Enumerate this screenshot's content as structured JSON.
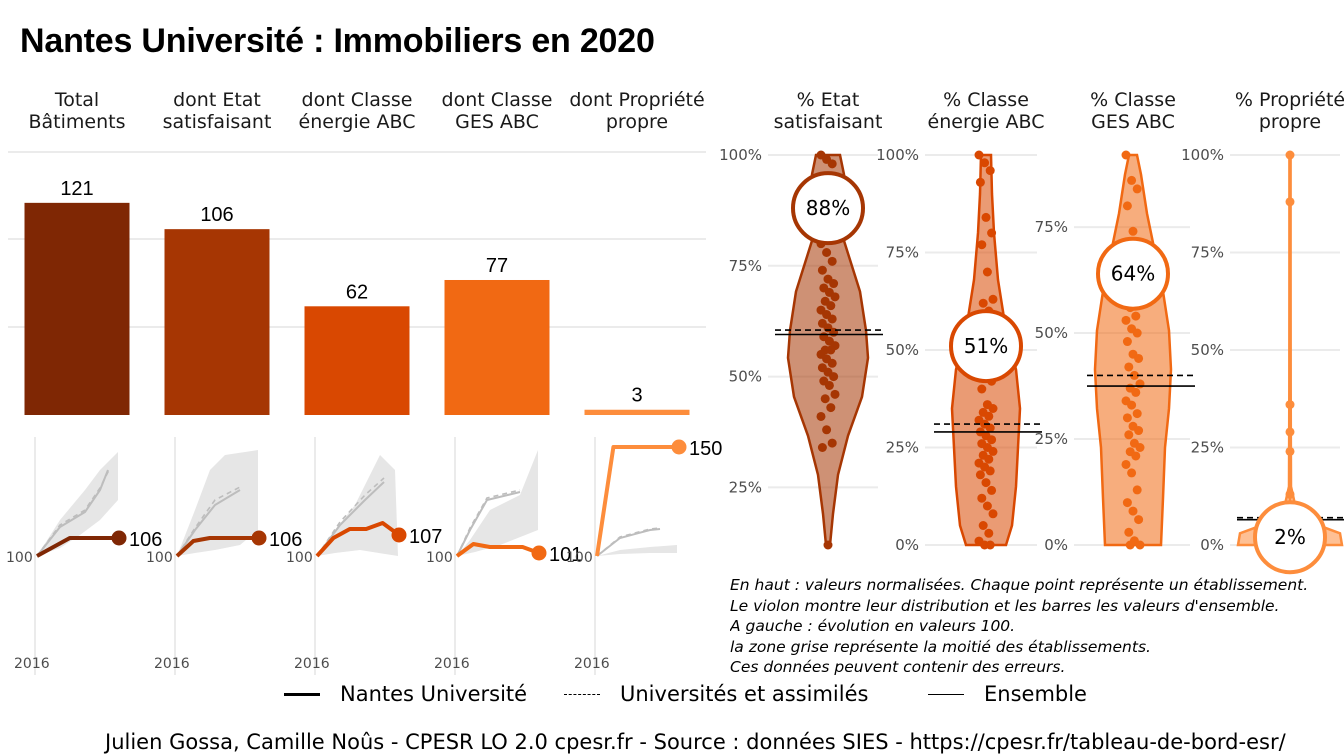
{
  "title": "Nantes Université  :  Immobiliers en 2020",
  "colors": {
    "bat": "#7F2704",
    "etat": "#A63603",
    "energie": "#D94801",
    "ges": "#F16913",
    "propre": "#FD8D3C",
    "grid": "#ebebeb",
    "ribbon": "#e6e6e6"
  },
  "chart_data": [
    {
      "type": "bar",
      "title": "",
      "categories": [
        "Total\nBâtiments",
        "dont Etat\nsatisfaisant",
        "dont Classe\nénergie ABC",
        "dont Classe\nGES ABC",
        "dont Propriété\npropre"
      ],
      "values": [
        121,
        106,
        62,
        77,
        3
      ],
      "data_labels": [
        "121",
        "106",
        "62",
        "77",
        "3"
      ],
      "ylim": [
        0,
        150
      ]
    },
    {
      "type": "line",
      "title": "",
      "x_tick": "2016",
      "base_label": "100",
      "series": [
        {
          "name": "Nantes Université",
          "values": [
            100,
            103,
            106,
            106,
            106,
            106
          ],
          "end_label": "106"
        },
        {
          "name": "Nantes Université",
          "values": [
            100,
            105,
            106,
            106,
            106,
            106
          ],
          "end_label": "106"
        },
        {
          "name": "Nantes Université",
          "values": [
            100,
            106,
            109,
            109,
            111,
            107
          ],
          "end_label": "107"
        },
        {
          "name": "Nantes Université",
          "values": [
            100,
            104,
            103,
            103,
            103,
            101
          ],
          "end_label": "101"
        },
        {
          "name": "Nantes Université",
          "values": [
            100,
            150,
            150,
            150,
            150,
            150
          ],
          "end_label": "150"
        }
      ]
    },
    {
      "type": "scatter",
      "title": "",
      "categories": [
        "% Etat\nsatisfaisant",
        "% Classe\nénergie ABC",
        "% Classe\nGES ABC",
        "% Propriété\npropre"
      ],
      "y_ticks": [
        [
          "25%",
          "50%",
          "75%",
          "100%"
        ],
        [
          "0%",
          "25%",
          "50%",
          "75%",
          "100%"
        ],
        [
          "0%",
          "25%",
          "50%",
          "75%"
        ],
        [
          "0%",
          "25%",
          "50%",
          "75%",
          "100%"
        ]
      ],
      "ylim": [
        [
          0.12,
          1.0
        ],
        [
          0,
          1.0
        ],
        [
          0,
          0.92
        ],
        [
          0,
          1.0
        ]
      ],
      "highlight_values": [
        0.88,
        0.51,
        0.64,
        0.02
      ],
      "highlight_labels": [
        "88%",
        "51%",
        "64%",
        "2%"
      ],
      "universites_values": [
        0.605,
        0.31,
        0.4,
        0.07
      ],
      "ensemble_values": [
        0.595,
        0.29,
        0.375,
        0.065
      ],
      "points": [
        [
          1.0,
          0.99,
          0.98,
          0.95,
          0.94,
          0.93,
          0.91,
          0.89,
          0.87,
          0.84,
          0.82,
          0.8,
          0.78,
          0.76,
          0.74,
          0.72,
          0.71,
          0.7,
          0.69,
          0.68,
          0.67,
          0.66,
          0.65,
          0.64,
          0.63,
          0.62,
          0.61,
          0.6,
          0.59,
          0.58,
          0.57,
          0.56,
          0.56,
          0.55,
          0.54,
          0.53,
          0.52,
          0.51,
          0.5,
          0.49,
          0.48,
          0.46,
          0.45,
          0.43,
          0.41,
          0.38,
          0.35,
          0.34,
          0.12
        ],
        [
          1.0,
          0.98,
          0.96,
          0.93,
          0.84,
          0.8,
          0.77,
          0.7,
          0.63,
          0.62,
          0.6,
          0.58,
          0.55,
          0.52,
          0.48,
          0.45,
          0.42,
          0.4,
          0.36,
          0.35,
          0.34,
          0.33,
          0.32,
          0.31,
          0.3,
          0.29,
          0.28,
          0.27,
          0.26,
          0.25,
          0.24,
          0.23,
          0.22,
          0.21,
          0.2,
          0.19,
          0.18,
          0.16,
          0.14,
          0.12,
          0.1,
          0.08,
          0.05,
          0.03,
          0.01,
          0.0,
          0.0
        ],
        [
          0.92,
          0.86,
          0.84,
          0.8,
          0.74,
          0.69,
          0.66,
          0.62,
          0.58,
          0.56,
          0.54,
          0.53,
          0.51,
          0.5,
          0.48,
          0.45,
          0.44,
          0.42,
          0.4,
          0.38,
          0.37,
          0.36,
          0.34,
          0.33,
          0.31,
          0.3,
          0.28,
          0.27,
          0.26,
          0.24,
          0.23,
          0.22,
          0.21,
          0.19,
          0.17,
          0.13,
          0.1,
          0.08,
          0.06,
          0.03,
          0.01,
          0.0,
          0.0
        ],
        [
          1.0,
          0.88,
          0.36,
          0.29,
          0.24,
          0.13,
          0.09,
          0.06,
          0.05,
          0.04,
          0.03,
          0.02,
          0.02,
          0.01,
          0.01,
          0.0,
          0.0,
          0.0,
          0.0,
          0.0,
          0.0
        ]
      ]
    }
  ],
  "notes": [
    "En haut : valeurs normalisées. Chaque point représente un établissement.",
    "Le violon montre leur distribution et les barres les valeurs d'ensemble.",
    "A gauche : évolution en valeurs 100.",
    "la zone grise représente la moitié des établissements.",
    "Ces données peuvent contenir des erreurs."
  ],
  "legend": [
    {
      "label": "Nantes Université",
      "style": "solid-thick"
    },
    {
      "label": "Universités et assimilés",
      "style": "dashed"
    },
    {
      "label": "Ensemble",
      "style": "solid-thin"
    }
  ],
  "footer": "Julien Gossa, Camille Noûs - CPESR LO 2.0 cpesr.fr - Source : données SIES - https://cpesr.fr/tableau-de-bord-esr/"
}
